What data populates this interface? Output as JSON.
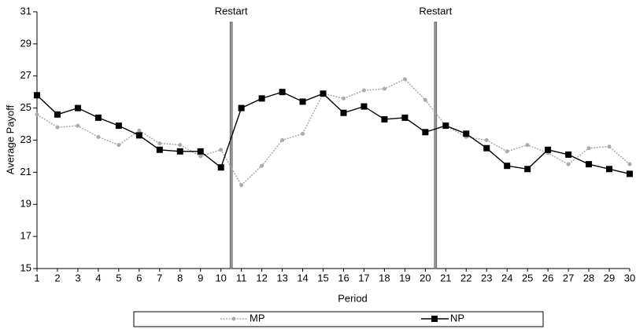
{
  "chart_data": {
    "type": "line",
    "xlabel": "Period",
    "ylabel": "Average Payoff",
    "x": [
      1,
      2,
      3,
      4,
      5,
      6,
      7,
      8,
      9,
      10,
      11,
      12,
      13,
      14,
      15,
      16,
      17,
      18,
      19,
      20,
      21,
      22,
      23,
      24,
      25,
      26,
      27,
      28,
      29,
      30
    ],
    "xlim": [
      1,
      30
    ],
    "xticks": [
      1,
      2,
      3,
      4,
      5,
      6,
      7,
      8,
      9,
      10,
      11,
      12,
      13,
      14,
      15,
      16,
      17,
      18,
      19,
      20,
      21,
      22,
      23,
      24,
      25,
      26,
      27,
      28,
      29,
      30
    ],
    "ylim": [
      15,
      31
    ],
    "yticks": [
      15,
      17,
      19,
      21,
      23,
      25,
      27,
      29,
      31
    ],
    "legend": "bottom",
    "annotations": [
      {
        "x": 10.5,
        "text": "Restart"
      },
      {
        "x": 20.5,
        "text": "Restart"
      }
    ],
    "series": [
      {
        "name": "MP",
        "color": "#aaaaaa",
        "values": [
          24.6,
          23.8,
          23.9,
          23.2,
          22.7,
          23.6,
          22.8,
          22.7,
          22.0,
          22.4,
          20.2,
          21.4,
          23.0,
          23.4,
          25.9,
          25.6,
          26.1,
          26.2,
          26.8,
          25.5,
          23.9,
          23.2,
          23.0,
          22.3,
          22.7,
          22.2,
          21.5,
          22.5,
          22.6,
          21.5
        ]
      },
      {
        "name": "NP",
        "color": "#000000",
        "values": [
          25.8,
          24.6,
          25.0,
          24.4,
          23.9,
          23.3,
          22.4,
          22.3,
          22.3,
          21.3,
          25.0,
          25.6,
          26.0,
          25.4,
          25.9,
          24.7,
          25.1,
          24.3,
          24.4,
          23.5,
          23.9,
          23.4,
          22.5,
          21.4,
          21.2,
          22.4,
          22.1,
          21.5,
          21.2,
          20.9
        ]
      }
    ]
  }
}
